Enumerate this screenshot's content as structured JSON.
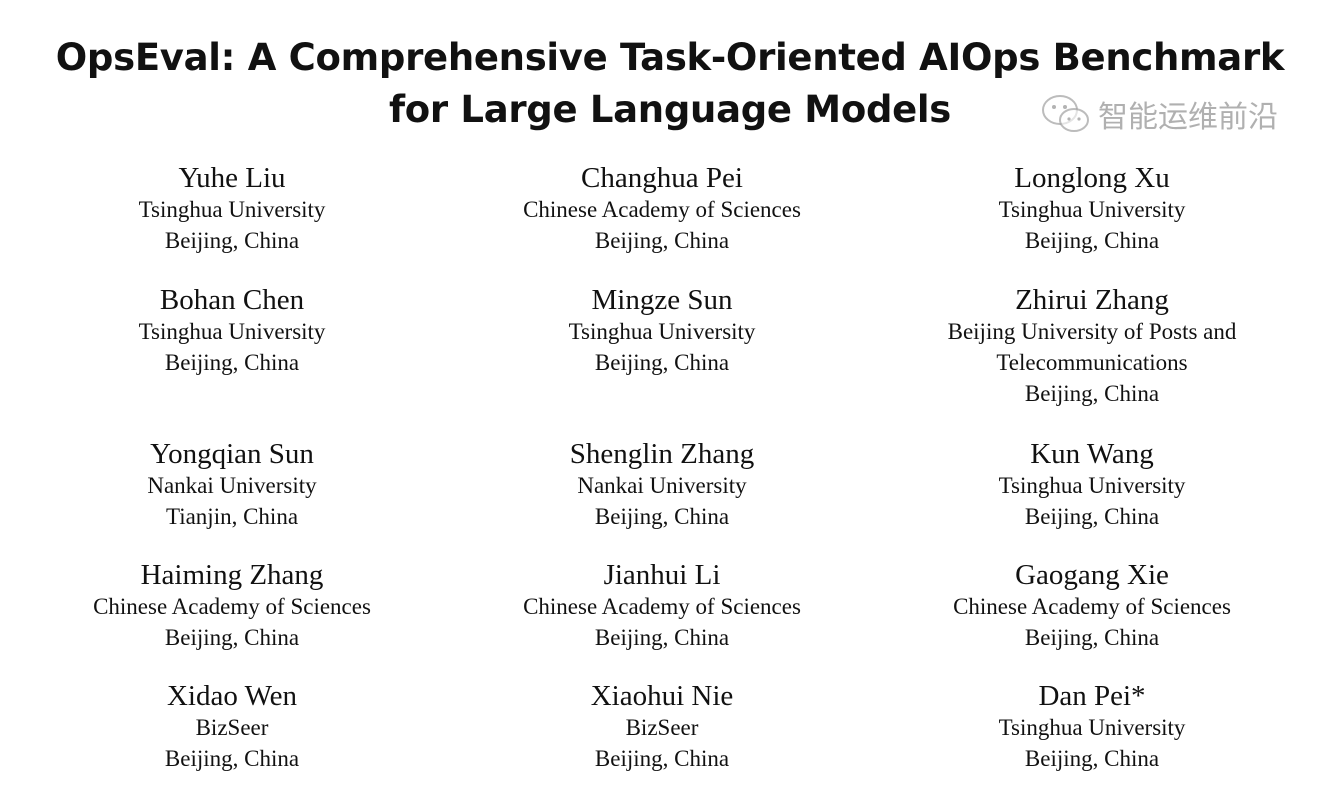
{
  "title": {
    "line1": "OpsEval: A Comprehensive Task-Oriented AIOps Benchmark",
    "line2": "for Large Language Models"
  },
  "authors": [
    {
      "name": "Yuhe Liu",
      "lines": [
        "Tsinghua University",
        "Beijing, China"
      ]
    },
    {
      "name": "Changhua Pei",
      "lines": [
        "Chinese Academy of Sciences",
        "Beijing, China"
      ]
    },
    {
      "name": "Longlong Xu",
      "lines": [
        "Tsinghua University",
        "Beijing, China"
      ]
    },
    {
      "name": "Bohan Chen",
      "lines": [
        "Tsinghua University",
        "Beijing, China"
      ]
    },
    {
      "name": "Mingze Sun",
      "lines": [
        "Tsinghua University",
        "Beijing, China"
      ]
    },
    {
      "name": "Zhirui Zhang",
      "lines": [
        "Beijing University of Posts and",
        "Telecommunications",
        "Beijing, China"
      ]
    },
    {
      "name": "Yongqian Sun",
      "lines": [
        "Nankai University",
        "Tianjin, China"
      ]
    },
    {
      "name": "Shenglin Zhang",
      "lines": [
        "Nankai University",
        "Beijing, China"
      ]
    },
    {
      "name": "Kun Wang",
      "lines": [
        "Tsinghua University",
        "Beijing, China"
      ]
    },
    {
      "name": "Haiming Zhang",
      "lines": [
        "Chinese Academy of Sciences",
        "Beijing, China"
      ]
    },
    {
      "name": "Jianhui Li",
      "lines": [
        "Chinese Academy of Sciences",
        "Beijing, China"
      ]
    },
    {
      "name": "Gaogang Xie",
      "lines": [
        "Chinese Academy of Sciences",
        "Beijing, China"
      ]
    },
    {
      "name": "Xidao Wen",
      "lines": [
        "BizSeer",
        "Beijing, China"
      ]
    },
    {
      "name": "Xiaohui Nie",
      "lines": [
        "BizSeer",
        "Beijing, China"
      ]
    },
    {
      "name": "Dan Pei*",
      "lines": [
        "Tsinghua University",
        "Beijing, China"
      ]
    }
  ],
  "watermark": {
    "text": "智能运维前沿",
    "icon": "wechat-icon"
  }
}
